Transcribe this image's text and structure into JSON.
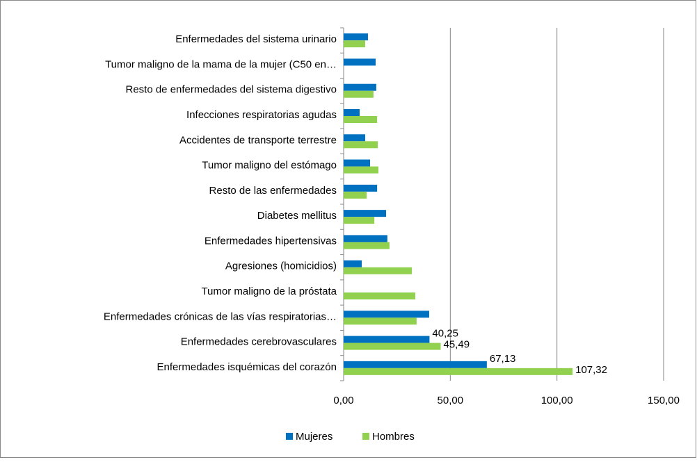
{
  "chart_data": {
    "type": "hbar",
    "categories": [
      "Enfermedades del sistema urinario",
      "Tumor maligno de la mama de la mujer (C50 en…",
      "Resto de enfermedades del sistema digestivo",
      "Infecciones respiratorias agudas",
      "Accidentes de transporte terrestre",
      "Tumor maligno del estómago",
      "Resto de las enfermedades",
      "Diabetes mellitus",
      "Enfermedades hipertensivas",
      "Agresiones (homicidios)",
      "Tumor maligno de la próstata",
      "Enfermedades crónicas de las vías respiratorias…",
      "Enfermedades cerebrovasculares",
      "Enfermedades isquémicas del corazón"
    ],
    "series": [
      {
        "name": "Mujeres",
        "color": "#0070c0",
        "values": [
          11.4,
          15.0,
          15.3,
          7.5,
          10.1,
          12.4,
          15.7,
          19.9,
          20.5,
          8.5,
          null,
          40.1,
          40.25,
          67.13
        ],
        "value_labels": [
          null,
          null,
          null,
          null,
          null,
          null,
          null,
          null,
          null,
          null,
          null,
          null,
          "40,25",
          "67,13"
        ]
      },
      {
        "name": "Hombres",
        "color": "#92d050",
        "values": [
          10.1,
          null,
          14.0,
          15.7,
          16.0,
          16.3,
          10.8,
          14.4,
          21.5,
          32.0,
          33.6,
          34.2,
          45.49,
          107.32
        ],
        "value_labels": [
          null,
          null,
          null,
          null,
          null,
          null,
          null,
          null,
          null,
          null,
          null,
          null,
          "45,49",
          "107,32"
        ]
      }
    ],
    "xlim": [
      0,
      150
    ],
    "xticks": [
      {
        "value": 0,
        "label": "0,00"
      },
      {
        "value": 50,
        "label": "50,00"
      },
      {
        "value": 100,
        "label": "100,00"
      },
      {
        "value": 150,
        "label": "150,00"
      }
    ],
    "grid": true
  }
}
